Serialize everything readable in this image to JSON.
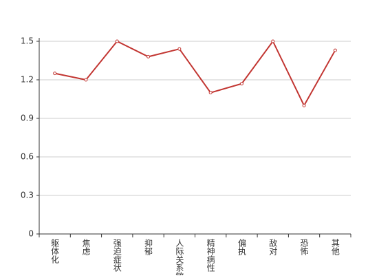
{
  "chart_data": {
    "type": "line",
    "categories": [
      "躯体化",
      "焦虑",
      "强迫症状",
      "抑郁",
      "人际关系敏感",
      "精神病性",
      "偏执",
      "敌对",
      "恐怖",
      "其他"
    ],
    "series": [
      {
        "color": "#c23531",
        "values": [
          1.25,
          1.2,
          1.5,
          1.38,
          1.44,
          1.1,
          1.17,
          1.5,
          1.0,
          1.43
        ]
      }
    ],
    "ylim": [
      0,
      1.5
    ],
    "yticks": [
      0,
      0.3,
      0.6,
      0.9,
      1.2,
      1.5
    ],
    "grid": true
  }
}
